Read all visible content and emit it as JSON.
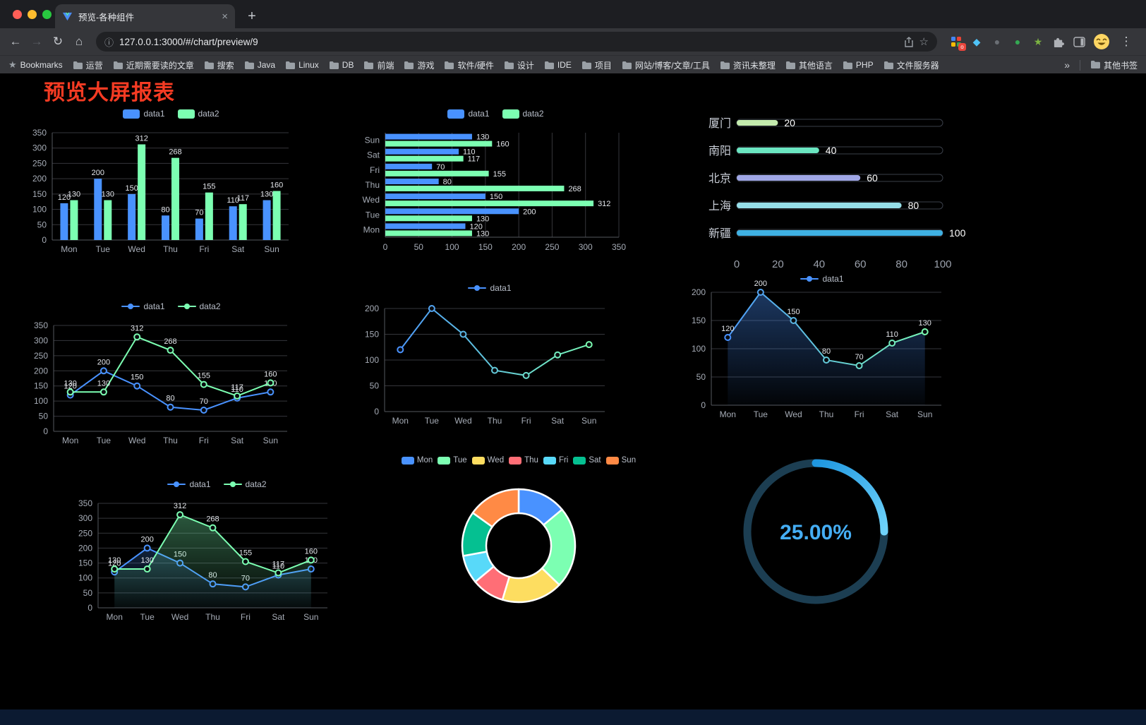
{
  "browser": {
    "tab_title": "预览-各种组件",
    "url": "127.0.0.1:3000/#/chart/preview/9",
    "bookmarks_label": "Bookmarks",
    "bookmarks": [
      "运营",
      "近期需要读的文章",
      "搜索",
      "Java",
      "Linux",
      "DB",
      "前端",
      "游戏",
      "软件/硬件",
      "设计",
      "IDE",
      "项目",
      "网站/博客/文章/工具",
      "资讯未整理",
      "其他语言",
      "PHP",
      "文件服务器"
    ],
    "bookmarks_overflow": "»",
    "other_bookmarks_label": "其他书签"
  },
  "icons": {
    "back": "←",
    "forward": "→",
    "reload": "↻",
    "home": "⌂",
    "info": "ⓘ",
    "star": "☆",
    "menu": "⋮",
    "close": "×",
    "new_tab": "+",
    "bookmarks_star": "★",
    "gem": "◆",
    "dot_dark": "●",
    "dot_green": "●",
    "leaf_star": "★",
    "badge": "o"
  },
  "page": {
    "title": "预览大屏报表",
    "title_color": "#f53b23"
  },
  "chart_data": [
    {
      "id": "bar-grouped",
      "type": "bar",
      "categories": [
        "Mon",
        "Tue",
        "Wed",
        "Thu",
        "Fri",
        "Sat",
        "Sun"
      ],
      "series": [
        {
          "name": "data1",
          "color": "#4992ff",
          "values": [
            120,
            200,
            150,
            80,
            70,
            110,
            130
          ]
        },
        {
          "name": "data2",
          "color": "#7cffb2",
          "values": [
            130,
            130,
            312,
            268,
            155,
            117,
            160
          ]
        }
      ],
      "ylim": [
        0,
        350
      ],
      "yticks": [
        0,
        50,
        100,
        150,
        200,
        250,
        300,
        350
      ],
      "legend_position": "top",
      "grid": true,
      "show_labels": true
    },
    {
      "id": "bar-horizontal",
      "type": "hbar",
      "categories": [
        "Mon",
        "Tue",
        "Wed",
        "Thu",
        "Fri",
        "Sat",
        "Sun"
      ],
      "series": [
        {
          "name": "data1",
          "color": "#4992ff",
          "values": [
            120,
            200,
            150,
            80,
            70,
            110,
            130
          ]
        },
        {
          "name": "data2",
          "color": "#7cffb2",
          "values": [
            130,
            130,
            312,
            268,
            155,
            117,
            160
          ]
        }
      ],
      "xlim": [
        0,
        350
      ],
      "xticks": [
        0,
        50,
        100,
        150,
        200,
        250,
        300,
        350
      ],
      "legend_position": "top",
      "grid": true,
      "show_labels": true
    },
    {
      "id": "progress-list",
      "type": "progress",
      "categories": [
        "厦门",
        "南阳",
        "北京",
        "上海",
        "新疆"
      ],
      "values": [
        20,
        40,
        60,
        80,
        100
      ],
      "colors": [
        "#c4ebad",
        "#6be6c1",
        "#a0a7e6",
        "#96dee8",
        "#3fb1e3"
      ],
      "xlim": [
        0,
        100
      ],
      "xticks": [
        0,
        20,
        40,
        60,
        80,
        100
      ]
    },
    {
      "id": "line-two-series",
      "type": "line",
      "categories": [
        "Mon",
        "Tue",
        "Wed",
        "Thu",
        "Fri",
        "Sat",
        "Sun"
      ],
      "series": [
        {
          "name": "data1",
          "color": "#4992ff",
          "values": [
            120,
            200,
            150,
            80,
            70,
            110,
            130
          ]
        },
        {
          "name": "data2",
          "color": "#7cffb2",
          "values": [
            130,
            130,
            312,
            268,
            155,
            117,
            160
          ]
        }
      ],
      "ylim": [
        0,
        350
      ],
      "yticks": [
        0,
        50,
        100,
        150,
        200,
        250,
        300,
        350
      ],
      "legend_position": "top",
      "grid": true,
      "show_labels": true
    },
    {
      "id": "line-gradient",
      "type": "line",
      "categories": [
        "Mon",
        "Tue",
        "Wed",
        "Thu",
        "Fri",
        "Sat",
        "Sun"
      ],
      "series": [
        {
          "name": "data1",
          "color": "#4992ff",
          "gradient": [
            "#4992ff",
            "#7cffb2"
          ],
          "values": [
            120,
            200,
            150,
            80,
            70,
            110,
            130
          ]
        }
      ],
      "ylim": [
        0,
        200
      ],
      "yticks": [
        0,
        50,
        100,
        150,
        200
      ],
      "legend_position": "top",
      "grid": true,
      "show_labels": false
    },
    {
      "id": "line-area",
      "type": "line",
      "categories": [
        "Mon",
        "Tue",
        "Wed",
        "Thu",
        "Fri",
        "Sat",
        "Sun"
      ],
      "series": [
        {
          "name": "data1",
          "color": "#4992ff",
          "gradient": [
            "#4992ff",
            "#7cffb2"
          ],
          "area": "#4992ff",
          "values": [
            120,
            200,
            150,
            80,
            70,
            110,
            130
          ]
        }
      ],
      "ylim": [
        0,
        200
      ],
      "yticks": [
        0,
        50,
        100,
        150,
        200
      ],
      "legend_position": "top",
      "grid": true,
      "show_labels": true
    },
    {
      "id": "line-two-area",
      "type": "line",
      "categories": [
        "Mon",
        "Tue",
        "Wed",
        "Thu",
        "Fri",
        "Sat",
        "Sun"
      ],
      "series": [
        {
          "name": "data1",
          "color": "#4992ff",
          "area": "#4992ff",
          "values": [
            120,
            200,
            150,
            80,
            70,
            110,
            130
          ]
        },
        {
          "name": "data2",
          "color": "#7cffb2",
          "area": "#7cffb2",
          "values": [
            130,
            130,
            312,
            268,
            155,
            117,
            160
          ]
        }
      ],
      "ylim": [
        0,
        350
      ],
      "yticks": [
        0,
        50,
        100,
        150,
        200,
        250,
        300,
        350
      ],
      "legend_position": "top",
      "grid": true,
      "show_labels": true
    },
    {
      "id": "donut",
      "type": "pie",
      "categories": [
        "Mon",
        "Tue",
        "Wed",
        "Thu",
        "Fri",
        "Sat",
        "Sun"
      ],
      "values": [
        120,
        200,
        150,
        80,
        70,
        110,
        130
      ],
      "colors": [
        "#4992ff",
        "#7cffb2",
        "#fddd60",
        "#ff6e76",
        "#58d9f9",
        "#05c091",
        "#ff8a45"
      ],
      "legend_position": "top"
    },
    {
      "id": "gauge",
      "type": "gauge",
      "percent": 25,
      "label": "25.00%",
      "color": "#1f97e0",
      "color_end": "#6fd3fb",
      "track_color": "#1c3e52",
      "text_color": "#45aef5"
    }
  ]
}
